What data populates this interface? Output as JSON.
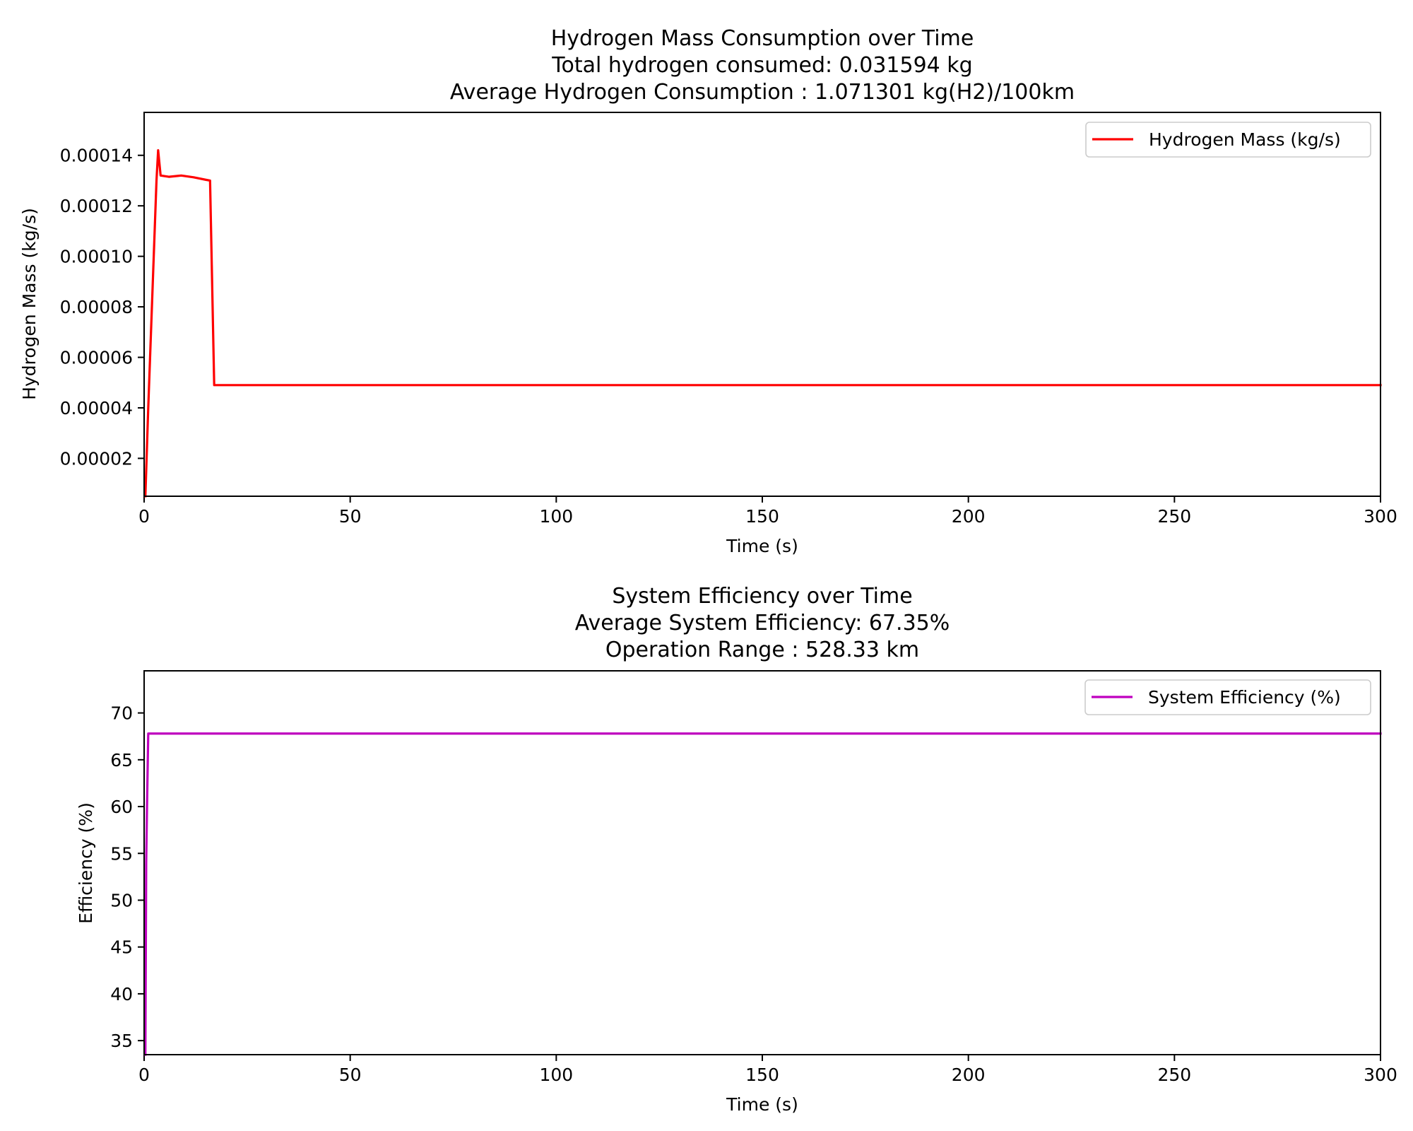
{
  "chart_data": [
    {
      "type": "line",
      "title": "Hydrogen Mass Consumption over Time",
      "subtitle": [
        "Total hydrogen consumed: 0.031594 kg",
        "Average Hydrogen Consumption : 1.071301 kg(H2)/100km"
      ],
      "xlabel": "Time (s)",
      "ylabel": "Hydrogen Mass (kg/s)",
      "xlim": [
        0,
        300
      ],
      "ylim": [
        5e-06,
        0.000157
      ],
      "xticks": [
        0,
        50,
        100,
        150,
        200,
        250,
        300
      ],
      "xtick_labels": [
        "0",
        "50",
        "100",
        "150",
        "200",
        "250",
        "300"
      ],
      "yticks": [
        2e-05,
        4e-05,
        6e-05,
        8e-05,
        0.0001,
        0.00012,
        0.00014
      ],
      "ytick_labels": [
        "0.00002",
        "0.00004",
        "0.00006",
        "0.00008",
        "0.00010",
        "0.00012",
        "0.00014"
      ],
      "grid": false,
      "legend_position": "top-right",
      "series": [
        {
          "name": "Hydrogen Mass (kg/s)",
          "color": "#ff0000",
          "x": [
            0.3,
            1,
            3,
            3.4,
            4,
            6,
            9,
            12,
            15,
            16,
            17,
            20,
            50,
            100,
            150,
            200,
            250,
            300
          ],
          "y": [
            5e-06,
            4e-05,
            0.00013,
            0.000142,
            0.000132,
            0.0001315,
            0.000132,
            0.0001313,
            0.0001303,
            0.00013,
            4.9e-05,
            4.9e-05,
            4.9e-05,
            4.9e-05,
            4.9e-05,
            4.9e-05,
            4.9e-05,
            4.9e-05
          ]
        }
      ]
    },
    {
      "type": "line",
      "title": "System Efficiency over Time",
      "subtitle": [
        "Average System Efficiency: 67.35%",
        "Operation Range : 528.33 km"
      ],
      "xlabel": "Time (s)",
      "ylabel": "Efficiency (%)",
      "xlim": [
        0,
        300
      ],
      "ylim": [
        33.5,
        74.5
      ],
      "xticks": [
        0,
        50,
        100,
        150,
        200,
        250,
        300
      ],
      "xtick_labels": [
        "0",
        "50",
        "100",
        "150",
        "200",
        "250",
        "300"
      ],
      "yticks": [
        35,
        40,
        45,
        50,
        55,
        60,
        65,
        70
      ],
      "ytick_labels": [
        "35",
        "40",
        "45",
        "50",
        "55",
        "60",
        "65",
        "70"
      ],
      "grid": false,
      "legend_position": "top-right",
      "series": [
        {
          "name": "System Efficiency (%)",
          "color": "#bf00bf",
          "x": [
            0.3,
            0.5,
            0.7,
            1,
            300
          ],
          "y": [
            33.5,
            54,
            60,
            67.8,
            67.8
          ]
        }
      ]
    }
  ]
}
